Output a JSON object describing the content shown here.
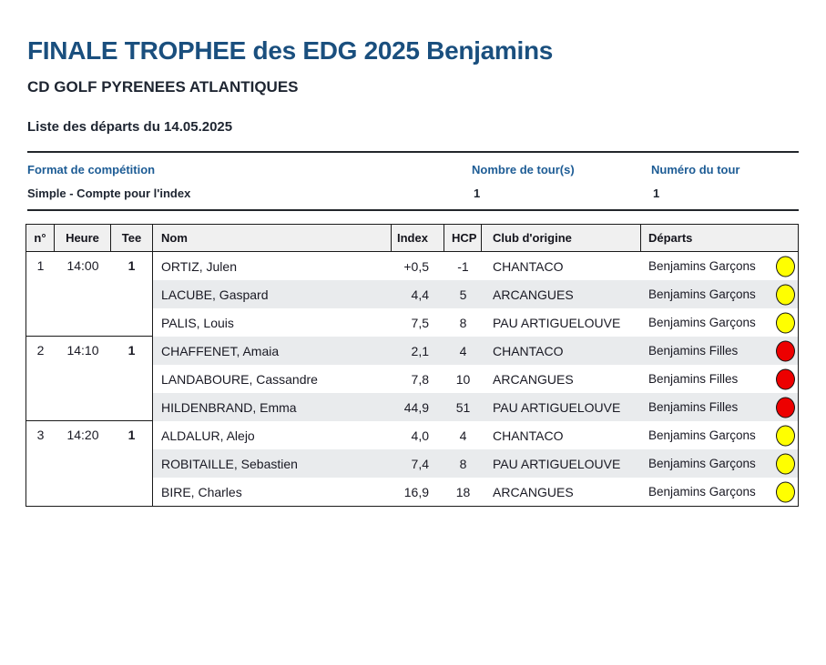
{
  "header": {
    "title": "FINALE TROPHEE des EDG 2025 Benjamins",
    "subtitle": "CD GOLF PYRENEES ATLANTIQUES",
    "list_title": "Liste des départs du 14.05.2025"
  },
  "info": {
    "format_label": "Format de compétition",
    "format_value": "Simple - Compte pour l'index",
    "rounds_label": "Nombre de tour(s)",
    "rounds_value": "1",
    "round_number_label": "Numéro du tour",
    "round_number_value": "1"
  },
  "colors": {
    "title_blue": "#1a4f7e",
    "label_blue": "#1d5c95",
    "dot_yellow": "#ffff00",
    "dot_red": "#ed0000",
    "row_shade": "#e9ebed"
  },
  "table": {
    "columns": [
      "n°",
      "Heure",
      "Tee",
      "Nom",
      "Index",
      "HCP",
      "Club d'origine",
      "Départs"
    ],
    "groups": [
      {
        "num": "1",
        "time": "14:00",
        "tee": "1",
        "players": [
          {
            "name": "ORTIZ, Julen",
            "index": "+0,5",
            "hcp": "-1",
            "club": "CHANTACO",
            "departs": "Benjamins Garçons",
            "dot": "#ffff00"
          },
          {
            "name": "LACUBE, Gaspard",
            "index": "4,4",
            "hcp": "5",
            "club": "ARCANGUES",
            "departs": "Benjamins Garçons",
            "dot": "#ffff00"
          },
          {
            "name": "PALIS, Louis",
            "index": "7,5",
            "hcp": "8",
            "club": "PAU ARTIGUELOUVE",
            "departs": "Benjamins Garçons",
            "dot": "#ffff00"
          }
        ]
      },
      {
        "num": "2",
        "time": "14:10",
        "tee": "1",
        "players": [
          {
            "name": "CHAFFENET, Amaia",
            "index": "2,1",
            "hcp": "4",
            "club": "CHANTACO",
            "departs": "Benjamins Filles",
            "dot": "#ed0000"
          },
          {
            "name": "LANDABOURE, Cassandre",
            "index": "7,8",
            "hcp": "10",
            "club": "ARCANGUES",
            "departs": "Benjamins Filles",
            "dot": "#ed0000"
          },
          {
            "name": "HILDENBRAND, Emma",
            "index": "44,9",
            "hcp": "51",
            "club": "PAU ARTIGUELOUVE",
            "departs": "Benjamins Filles",
            "dot": "#ed0000"
          }
        ]
      },
      {
        "num": "3",
        "time": "14:20",
        "tee": "1",
        "players": [
          {
            "name": "ALDALUR, Alejo",
            "index": "4,0",
            "hcp": "4",
            "club": "CHANTACO",
            "departs": "Benjamins Garçons",
            "dot": "#ffff00"
          },
          {
            "name": "ROBITAILLE, Sebastien",
            "index": "7,4",
            "hcp": "8",
            "club": "PAU ARTIGUELOUVE",
            "departs": "Benjamins Garçons",
            "dot": "#ffff00"
          },
          {
            "name": "BIRE, Charles",
            "index": "16,9",
            "hcp": "18",
            "club": "ARCANGUES",
            "departs": "Benjamins Garçons",
            "dot": "#ffff00"
          }
        ]
      }
    ]
  }
}
